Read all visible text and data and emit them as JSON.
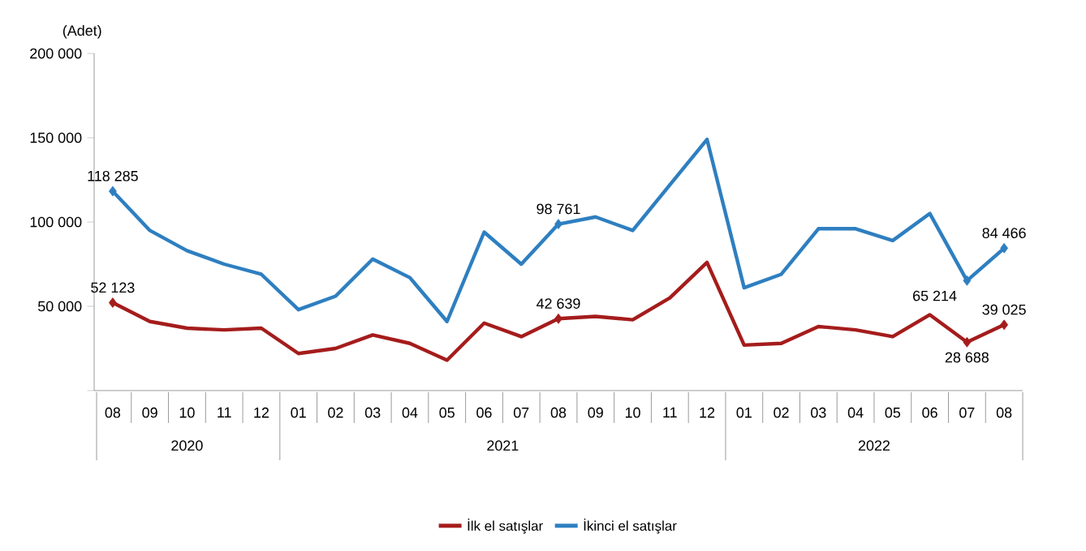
{
  "chart_data": {
    "type": "line",
    "ylabel": "(Adet)",
    "categories": [
      "08",
      "09",
      "10",
      "11",
      "12",
      "01",
      "02",
      "03",
      "04",
      "05",
      "06",
      "07",
      "08",
      "09",
      "10",
      "11",
      "12",
      "01",
      "02",
      "03",
      "04",
      "05",
      "06",
      "07",
      "08"
    ],
    "series": [
      {
        "name": "İlk el satışlar",
        "color": "#a51c1c",
        "values": [
          52123,
          41000,
          37000,
          36000,
          37000,
          22000,
          25000,
          33000,
          28000,
          18000,
          40000,
          32000,
          42639,
          44000,
          42000,
          55000,
          76000,
          27000,
          28000,
          38000,
          36000,
          32000,
          45000,
          28688,
          39025
        ],
        "value_labels": [
          "52 123",
          null,
          null,
          null,
          null,
          null,
          null,
          null,
          null,
          null,
          null,
          null,
          "42 639",
          null,
          null,
          null,
          null,
          null,
          null,
          null,
          null,
          null,
          null,
          "28 688",
          "39 025"
        ]
      },
      {
        "name": "İkinci el satışlar",
        "color": "#2e7fc0",
        "values": [
          118285,
          95000,
          83000,
          75000,
          69000,
          48000,
          56000,
          78000,
          67000,
          41000,
          94000,
          75000,
          98761,
          103000,
          95000,
          122000,
          149000,
          61000,
          69000,
          96000,
          96000,
          89000,
          105000,
          65214,
          84466
        ],
        "value_labels": [
          "118 285",
          null,
          null,
          null,
          null,
          null,
          null,
          null,
          null,
          null,
          null,
          null,
          "98 761",
          null,
          null,
          null,
          null,
          null,
          null,
          null,
          null,
          null,
          null,
          "65 214",
          "84 466"
        ]
      }
    ],
    "annotations": [
      "2020",
      "2021",
      "2022"
    ],
    "ylim": [
      0,
      200000
    ],
    "yticks": [
      {
        "value": 0,
        "label": null
      },
      {
        "value": 50000,
        "label": "50 000"
      },
      {
        "value": 100000,
        "label": "100 000"
      },
      {
        "value": 150000,
        "label": "150 000"
      },
      {
        "value": 200000,
        "label": "200 000"
      }
    ],
    "grid": false,
    "legend": "bottom"
  }
}
